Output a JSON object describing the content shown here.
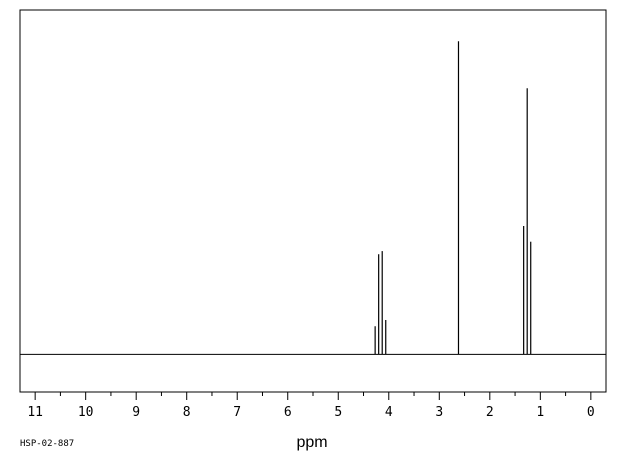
{
  "chart_data": {
    "type": "line",
    "xlabel": "ppm",
    "x_reversed": true,
    "xlim": [
      11.3,
      -0.3
    ],
    "ylim": [
      -0.12,
      1.1
    ],
    "grid": false,
    "ticks": {
      "major": [
        11,
        10,
        9,
        8,
        7,
        6,
        5,
        4,
        3,
        2,
        1,
        0
      ],
      "major_labels": [
        "11",
        "10",
        "9",
        "8",
        "7",
        "6",
        "5",
        "4",
        "3",
        "2",
        "1",
        "0"
      ],
      "minor_step": 0.5
    },
    "series": [
      {
        "peaks": [
          {
            "ppm": 4.27,
            "height": 0.09
          },
          {
            "ppm": 4.2,
            "height": 0.32
          },
          {
            "ppm": 4.13,
            "height": 0.33
          },
          {
            "ppm": 4.06,
            "height": 0.11
          },
          {
            "ppm": 2.62,
            "height": 1.0
          },
          {
            "ppm": 1.33,
            "height": 0.41
          },
          {
            "ppm": 1.26,
            "height": 0.85
          },
          {
            "ppm": 1.19,
            "height": 0.36
          }
        ]
      }
    ]
  },
  "footer": {
    "spectrum_id": "HSP-02-887"
  }
}
